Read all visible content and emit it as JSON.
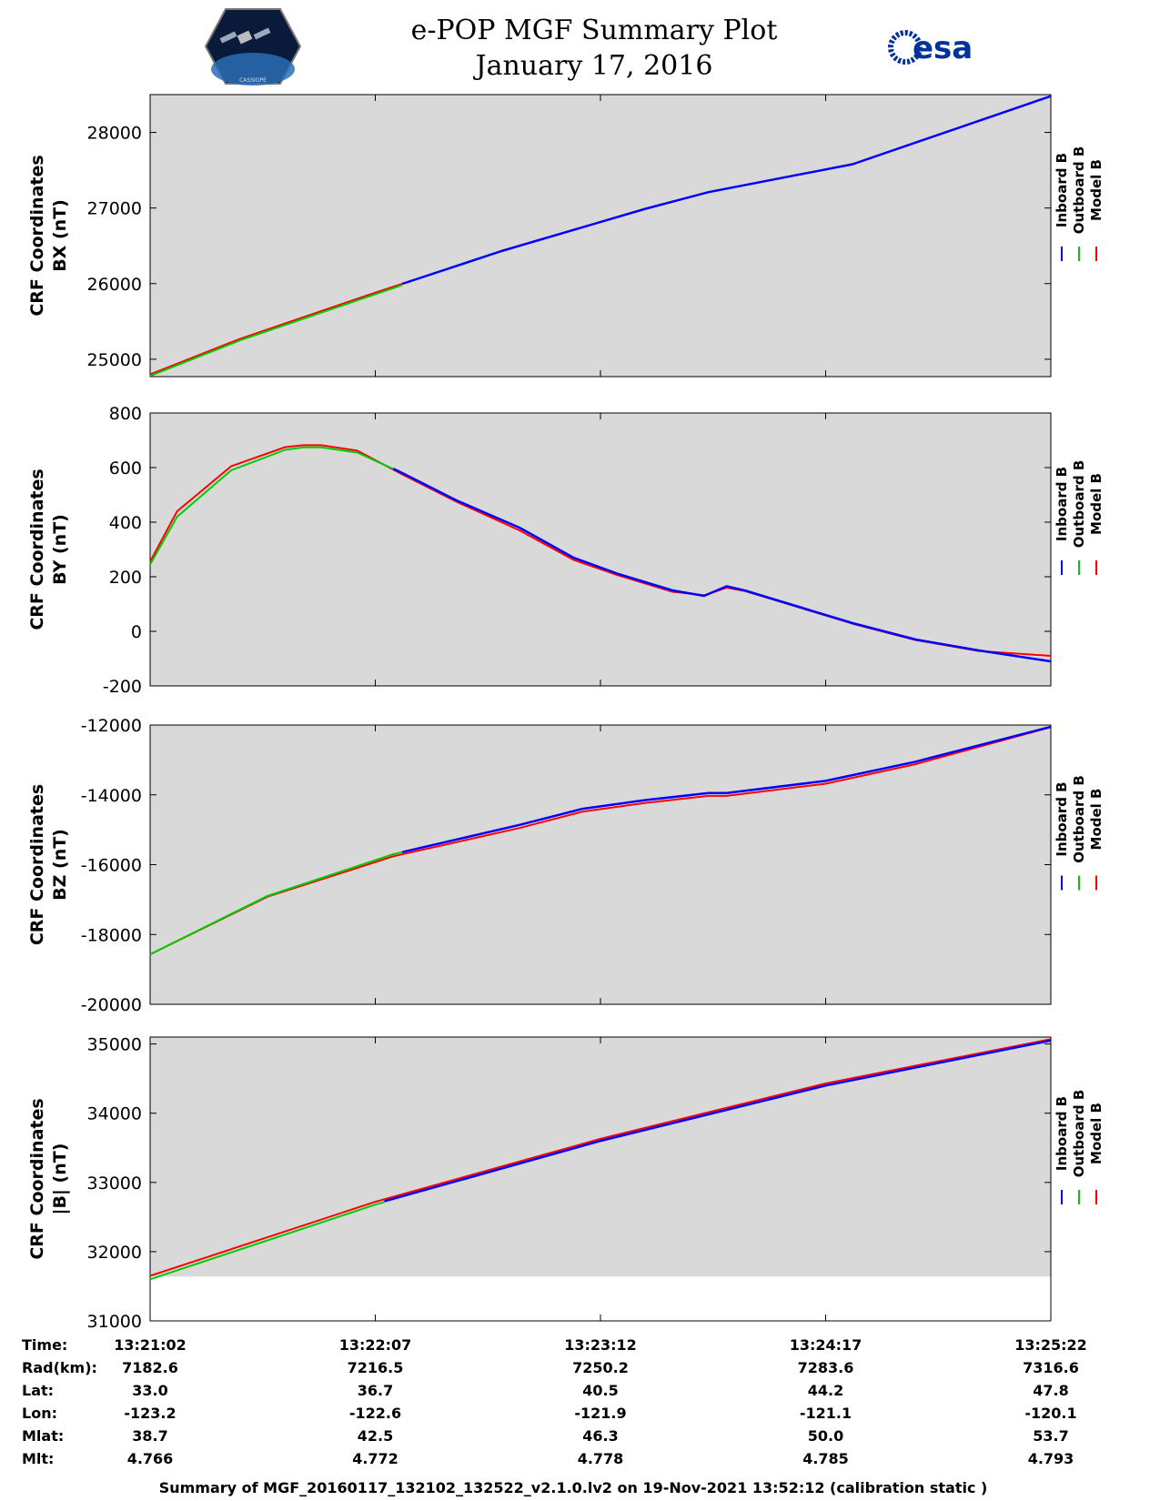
{
  "header": {
    "title": "e-POP MGF Summary Plot",
    "date": "January 17, 2016",
    "left_logo_text": "CASSIOPE",
    "right_logo_text": "esa"
  },
  "legend": {
    "labels": [
      "Inboard B",
      "Outboard B",
      "Model B"
    ],
    "colors": [
      "#0000ff",
      "#00cc00",
      "#ff0000"
    ]
  },
  "chart_data": [
    {
      "type": "line",
      "title": "",
      "ylabel": [
        "CRF Coordinates",
        "BX (nT)"
      ],
      "ylim": [
        24770,
        28500
      ],
      "yticks": [
        25000,
        26000,
        27000,
        28000
      ],
      "x": [
        0,
        0.1,
        0.25,
        0.39,
        0.55,
        0.62,
        0.78,
        1
      ],
      "shade_below": null,
      "series": [
        {
          "name": "Inboard B",
          "x_start": 0.28,
          "values": [
            24800,
            25270,
            25880,
            26430,
            26990,
            27210,
            27580,
            28480
          ]
        },
        {
          "name": "Outboard B",
          "x_end": 0.28,
          "values": [
            24780,
            25250,
            25860,
            26420,
            26990,
            27210,
            27580,
            28480
          ]
        },
        {
          "name": "Model B",
          "values": [
            24800,
            25270,
            25880,
            26430,
            26990,
            27210,
            27580,
            28480
          ]
        }
      ]
    },
    {
      "type": "line",
      "title": "",
      "ylabel": [
        "CRF Coordinates",
        "BY (nT)"
      ],
      "ylim": [
        -200,
        800
      ],
      "yticks": [
        -200,
        0,
        200,
        400,
        600,
        800
      ],
      "x": [
        0,
        0.03,
        0.09,
        0.15,
        0.17,
        0.19,
        0.23,
        0.28,
        0.34,
        0.41,
        0.47,
        0.52,
        0.58,
        0.615,
        0.64,
        0.66,
        0.72,
        0.78,
        0.85,
        0.92,
        1
      ],
      "shade_below": null,
      "series": [
        {
          "name": "Inboard B",
          "x_start": 0.27,
          "values": [
            250,
            430,
            600,
            672,
            680,
            680,
            660,
            580,
            480,
            380,
            270,
            210,
            150,
            130,
            165,
            150,
            90,
            30,
            -30,
            -70,
            -110
          ]
        },
        {
          "name": "Outboard B",
          "x_end": 0.27,
          "values": [
            245,
            420,
            590,
            665,
            674,
            674,
            655,
            580,
            480,
            380,
            270,
            210,
            150,
            130,
            165,
            150,
            90,
            30,
            -30,
            -70,
            -110
          ]
        },
        {
          "name": "Model B",
          "values": [
            255,
            440,
            605,
            675,
            682,
            682,
            662,
            575,
            475,
            370,
            262,
            205,
            145,
            132,
            160,
            148,
            88,
            28,
            -32,
            -72,
            -90
          ]
        }
      ]
    },
    {
      "type": "line",
      "title": "",
      "ylabel": [
        "CRF Coordinates",
        "BZ (nT)"
      ],
      "ylim": [
        -20000,
        -12000
      ],
      "yticks": [
        -20000,
        -18000,
        -16000,
        -14000,
        -12000
      ],
      "x": [
        0,
        0.13,
        0.27,
        0.41,
        0.48,
        0.55,
        0.62,
        0.64,
        0.75,
        0.85,
        1
      ],
      "shade_below": null,
      "series": [
        {
          "name": "Inboard B",
          "x_start": 0.28,
          "values": [
            -18570,
            -16900,
            -15700,
            -14860,
            -14400,
            -14150,
            -13950,
            -13950,
            -13600,
            -13050,
            -12050
          ]
        },
        {
          "name": "Outboard B",
          "x_end": 0.28,
          "values": [
            -18570,
            -16900,
            -15700,
            -14860,
            -14400,
            -14150,
            -13950,
            -13950,
            -13600,
            -13050,
            -12050
          ]
        },
        {
          "name": "Model B",
          "values": [
            -18570,
            -16920,
            -15760,
            -14950,
            -14480,
            -14230,
            -14030,
            -14030,
            -13680,
            -13120,
            -12060
          ]
        }
      ]
    },
    {
      "type": "line",
      "title": "",
      "ylabel": [
        "CRF Coordinates",
        "|B| (nT)"
      ],
      "ylim": [
        31000,
        35100
      ],
      "yticks": [
        31000,
        32000,
        33000,
        34000,
        35000
      ],
      "x": [
        0,
        0.25,
        0.5,
        0.75,
        1
      ],
      "shade_below": 31640,
      "series": [
        {
          "name": "Inboard B",
          "x_start": 0.26,
          "values": [
            31630,
            32690,
            33600,
            34400,
            35050
          ]
        },
        {
          "name": "Outboard B",
          "x_end": 0.26,
          "values": [
            31600,
            32680,
            33600,
            34400,
            35050
          ]
        },
        {
          "name": "Model B",
          "values": [
            31650,
            32720,
            33630,
            34430,
            35070
          ]
        }
      ]
    }
  ],
  "ephemeris": {
    "labels": [
      "Time:",
      "Rad(km):",
      "Lat:",
      "Lon:",
      "Mlat:",
      "Mlt:"
    ],
    "columns": [
      [
        "13:21:02",
        "7182.6",
        "33.0",
        "-123.2",
        "38.7",
        "4.766"
      ],
      [
        "13:22:07",
        "7216.5",
        "36.7",
        "-122.6",
        "42.5",
        "4.772"
      ],
      [
        "13:23:12",
        "7250.2",
        "40.5",
        "-121.9",
        "46.3",
        "4.778"
      ],
      [
        "13:24:17",
        "7283.6",
        "44.2",
        "-121.1",
        "50.0",
        "4.785"
      ],
      [
        "13:25:22",
        "7316.6",
        "47.8",
        "-120.1",
        "53.7",
        "4.793"
      ]
    ]
  },
  "footer": "Summary of MGF_20160117_132102_132522_v2.1.0.lv2 on 19-Nov-2021 13:52:12 (calibration static )"
}
